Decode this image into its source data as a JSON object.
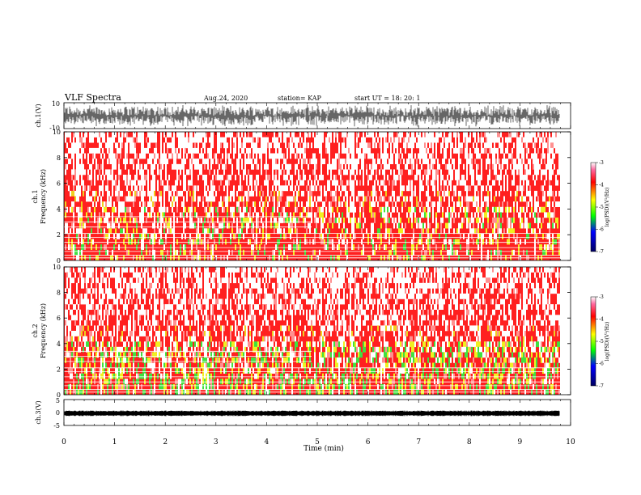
{
  "header": {
    "title": "VLF Spectra",
    "date": "Aug.24, 2020",
    "station": "station= KAP",
    "start_ut": "start  UT  =   18: 20: 1"
  },
  "chart_data": [
    {
      "type": "line",
      "panel": "ch1-waveform",
      "ylabel": "ch.1(V)",
      "ylim": [
        -10,
        10
      ],
      "yticks": [
        "10",
        "-10"
      ],
      "xlim": [
        0,
        9.85
      ],
      "color": "#000000"
    },
    {
      "type": "heatmap",
      "panel": "ch1-spectrogram",
      "ylabel": "ch.1\nFrequency (kHz)",
      "ylim": [
        0,
        10
      ],
      "yticks": [
        "0",
        "2",
        "4",
        "6",
        "8",
        "10"
      ],
      "xlim": [
        0,
        9.85
      ],
      "colorbar": {
        "label": "log(PSD)(V²/Hz)",
        "range": [
          -7,
          -3
        ],
        "ticks": [
          "-3",
          "-4",
          "-5",
          "-6",
          "-7"
        ]
      }
    },
    {
      "type": "heatmap",
      "panel": "ch2-spectrogram",
      "ylabel": "ch.2\nFrequency (kHz)",
      "ylim": [
        0,
        10
      ],
      "yticks": [
        "0",
        "2",
        "4",
        "6",
        "8",
        "10"
      ],
      "xlim": [
        0,
        9.85
      ],
      "colorbar": {
        "label": "log(PSD)(V²/Hz)",
        "range": [
          -7,
          -3
        ],
        "ticks": [
          "-3",
          "-4",
          "-5",
          "-6",
          "-7"
        ]
      }
    },
    {
      "type": "line",
      "panel": "ch3-waveform",
      "ylabel": "ch.3(V)",
      "ylim": [
        -5,
        5
      ],
      "yticks": [
        "5",
        "0",
        "-5"
      ],
      "xlabel": "Time (min)",
      "xticks": [
        "0",
        "1",
        "2",
        "3",
        "4",
        "5",
        "6",
        "7",
        "8",
        "9",
        "10"
      ],
      "xlim": [
        0,
        10
      ],
      "color": "#000000"
    }
  ]
}
